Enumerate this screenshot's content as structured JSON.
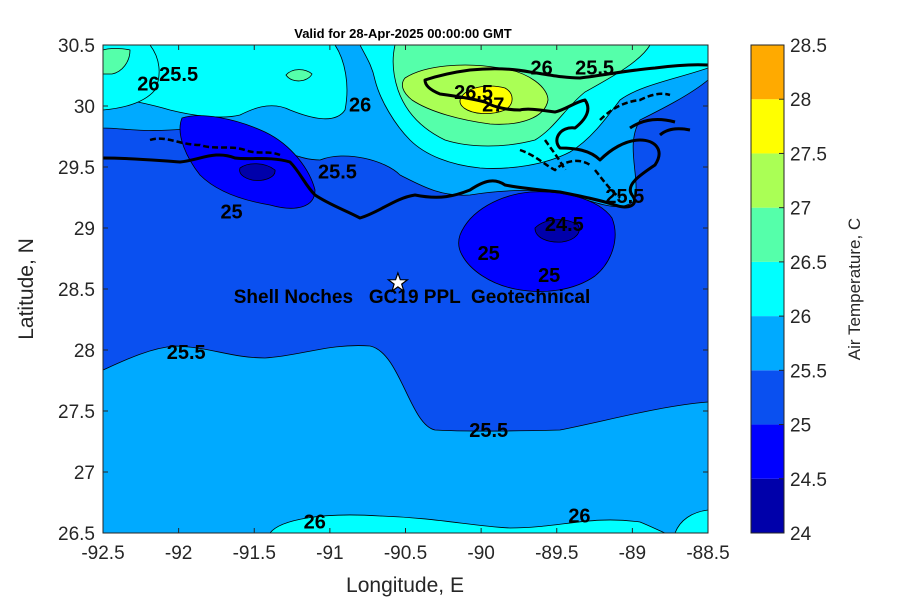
{
  "chart_data": {
    "type": "contour-map",
    "title": "Valid for 28-Apr-2025 00:00:00 GMT",
    "xlabel": "Longitude, E",
    "ylabel": "Latitude, N",
    "xlim": [
      -92.5,
      -88.5
    ],
    "ylim": [
      26.5,
      30.5
    ],
    "xticks": [
      "-92.5",
      "-92",
      "-91.5",
      "-91",
      "-90.5",
      "-90",
      "-89.5",
      "-89",
      "-88.5"
    ],
    "yticks": [
      "26.5",
      "27",
      "27.5",
      "28",
      "28.5",
      "29",
      "29.5",
      "30",
      "30.5"
    ],
    "colorbar": {
      "label": "Air Temperature, C",
      "levels": [
        24,
        24.5,
        25,
        25.5,
        26,
        26.5,
        27,
        27.5,
        28,
        28.5
      ],
      "ticks": [
        "24",
        "24.5",
        "25",
        "25.5",
        "26",
        "26.5",
        "27",
        "27.5",
        "28",
        "28.5"
      ],
      "colors": [
        "#0000aa",
        "#0000ff",
        "#0a50f0",
        "#00aaff",
        "#00ffff",
        "#55ffaa",
        "#aaff55",
        "#ffff00",
        "#ffaa00",
        "#ff5500"
      ]
    },
    "site": {
      "name": "Shell Noches   GC19 PPL  Geotechnical",
      "lon": -90.55,
      "lat": 28.55
    },
    "contour_labels": [
      {
        "text": "26",
        "lon": -92.2,
        "lat": 30.17
      },
      {
        "text": "25.5",
        "lon": -92.0,
        "lat": 30.25
      },
      {
        "text": "26",
        "lon": -90.8,
        "lat": 30.0
      },
      {
        "text": "26.5",
        "lon": -90.05,
        "lat": 30.1
      },
      {
        "text": "27",
        "lon": -89.92,
        "lat": 30.0
      },
      {
        "text": "26",
        "lon": -89.6,
        "lat": 30.3
      },
      {
        "text": "25.5",
        "lon": -89.25,
        "lat": 30.3
      },
      {
        "text": "25.5",
        "lon": -90.95,
        "lat": 29.45
      },
      {
        "text": "25",
        "lon": -91.65,
        "lat": 29.12
      },
      {
        "text": "25.5",
        "lon": -89.05,
        "lat": 29.25
      },
      {
        "text": "24.5",
        "lon": -89.45,
        "lat": 29.02
      },
      {
        "text": "25",
        "lon": -89.95,
        "lat": 28.78
      },
      {
        "text": "25",
        "lon": -89.55,
        "lat": 28.6
      },
      {
        "text": "25.5",
        "lon": -91.95,
        "lat": 27.97
      },
      {
        "text": "25.5",
        "lon": -89.95,
        "lat": 27.33
      },
      {
        "text": "26",
        "lon": -91.1,
        "lat": 26.58
      },
      {
        "text": "26",
        "lon": -89.35,
        "lat": 26.63
      }
    ]
  }
}
